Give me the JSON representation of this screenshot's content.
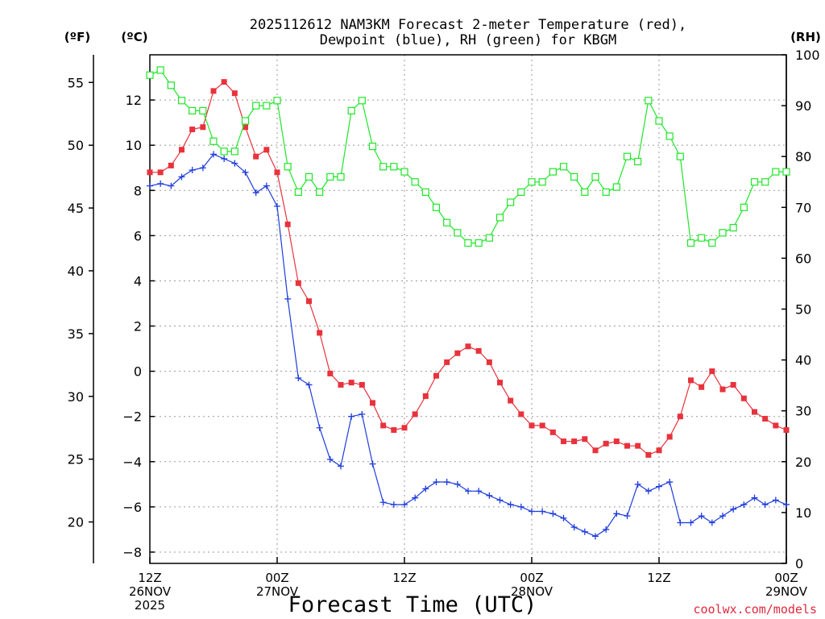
{
  "chart_data": {
    "type": "line",
    "title": "2025112612 NAM3KM Forecast 2-meter Temperature (red),",
    "subtitle": "Dewpoint (blue), RH (green) for KBGM",
    "xlabel": "Forecast Time (UTC)",
    "units": {
      "fahrenheit": "(ºF)",
      "celsius": "(ºC)",
      "rh": "(RH)"
    },
    "credit": "coolwx.com/models",
    "x_unit": "forecast hour",
    "xlim": [
      0,
      60
    ],
    "ylim_c": [
      -8.5,
      14
    ],
    "ylim_rh": [
      0,
      100
    ],
    "c_ticks": [
      -8,
      -6,
      -4,
      -2,
      0,
      2,
      4,
      6,
      8,
      10,
      12
    ],
    "c_tick_labels": [
      "−8",
      "−6",
      "−4",
      "−2",
      "0",
      "2",
      "4",
      "6",
      "8",
      "10",
      "12"
    ],
    "f_ticks": [
      20,
      25,
      30,
      35,
      40,
      45,
      50,
      55
    ],
    "f_tick_labels": [
      "20",
      "25",
      "30",
      "35",
      "40",
      "45",
      "50",
      "55"
    ],
    "rh_ticks": [
      0,
      10,
      20,
      30,
      40,
      50,
      60,
      70,
      80,
      90,
      100
    ],
    "rh_tick_labels": [
      "0",
      "10",
      "20",
      "30",
      "40",
      "50",
      "60",
      "70",
      "80",
      "90",
      "100"
    ],
    "x_ticks": [
      {
        "hour": 0,
        "lines": [
          "12Z",
          "26NOV",
          "2025"
        ]
      },
      {
        "hour": 12,
        "lines": [
          "00Z",
          "27NOV"
        ]
      },
      {
        "hour": 24,
        "lines": [
          "12Z"
        ]
      },
      {
        "hour": 36,
        "lines": [
          "00Z",
          "28NOV"
        ]
      },
      {
        "hour": 48,
        "lines": [
          "12Z"
        ]
      },
      {
        "hour": 60,
        "lines": [
          "00Z",
          "29NOV"
        ]
      }
    ],
    "grid": true,
    "series": [
      {
        "name": "2-meter Temperature",
        "color": "#e8323c",
        "marker": "filled-square",
        "axis": "celsius",
        "x": [
          0,
          1,
          2,
          3,
          4,
          5,
          6,
          7,
          8,
          9,
          10,
          11,
          12,
          13,
          14,
          15,
          16,
          17,
          18,
          19,
          20,
          21,
          22,
          23,
          24,
          25,
          26,
          27,
          28,
          29,
          30,
          31,
          32,
          33,
          34,
          35,
          36,
          37,
          38,
          39,
          40,
          41,
          42,
          43,
          44,
          45,
          46,
          47,
          48,
          49,
          50,
          51,
          52,
          53,
          54,
          55,
          56,
          57,
          58,
          59,
          60
        ],
        "values": [
          8.8,
          8.8,
          9.1,
          9.8,
          10.7,
          10.8,
          12.4,
          12.8,
          12.3,
          10.8,
          9.5,
          9.8,
          8.8,
          6.5,
          3.9,
          3.1,
          1.7,
          -0.1,
          -0.6,
          -0.5,
          -0.6,
          -1.4,
          -2.4,
          -2.6,
          -2.5,
          -1.9,
          -1.1,
          -0.2,
          0.4,
          0.8,
          1.1,
          0.9,
          0.4,
          -0.5,
          -1.3,
          -1.9,
          -2.4,
          -2.4,
          -2.7,
          -3.1,
          -3.1,
          -3.0,
          -3.5,
          -3.2,
          -3.1,
          -3.3,
          -3.3,
          -3.7,
          -3.5,
          -2.9,
          -2.0,
          -0.4,
          -0.7,
          0.0,
          -0.8,
          -0.6,
          -1.2,
          -1.8,
          -2.1,
          -2.4,
          -2.6
        ]
      },
      {
        "name": "Dewpoint",
        "color": "#1e3cdc",
        "marker": "plus",
        "axis": "celsius",
        "x": [
          0,
          1,
          2,
          3,
          4,
          5,
          6,
          7,
          8,
          9,
          10,
          11,
          12,
          13,
          14,
          15,
          16,
          17,
          18,
          19,
          20,
          21,
          22,
          23,
          24,
          25,
          26,
          27,
          28,
          29,
          30,
          31,
          32,
          33,
          34,
          35,
          36,
          37,
          38,
          39,
          40,
          41,
          42,
          43,
          44,
          45,
          46,
          47,
          48,
          49,
          50,
          51,
          52,
          53,
          54,
          55,
          56,
          57,
          58,
          59,
          60
        ],
        "values": [
          8.2,
          8.3,
          8.2,
          8.6,
          8.9,
          9.0,
          9.6,
          9.4,
          9.2,
          8.8,
          7.9,
          8.2,
          7.3,
          3.2,
          -0.3,
          -0.6,
          -2.5,
          -3.9,
          -4.2,
          -2.0,
          -1.9,
          -4.1,
          -5.8,
          -5.9,
          -5.9,
          -5.6,
          -5.2,
          -4.9,
          -4.9,
          -5.0,
          -5.3,
          -5.3,
          -5.5,
          -5.7,
          -5.9,
          -6.0,
          -6.2,
          -6.2,
          -6.3,
          -6.5,
          -6.9,
          -7.1,
          -7.3,
          -7.0,
          -6.3,
          -6.4,
          -5.0,
          -5.3,
          -5.1,
          -4.9,
          -6.7,
          -6.7,
          -6.4,
          -6.7,
          -6.4,
          -6.1,
          -5.9,
          -5.6,
          -5.9,
          -5.7,
          -5.9
        ]
      },
      {
        "name": "RH",
        "color": "#1ee628",
        "marker": "open-square",
        "axis": "rh",
        "x": [
          0,
          1,
          2,
          3,
          4,
          5,
          6,
          7,
          8,
          9,
          10,
          11,
          12,
          13,
          14,
          15,
          16,
          17,
          18,
          19,
          20,
          21,
          22,
          23,
          24,
          25,
          26,
          27,
          28,
          29,
          30,
          31,
          32,
          33,
          34,
          35,
          36,
          37,
          38,
          39,
          40,
          41,
          42,
          43,
          44,
          45,
          46,
          47,
          48,
          49,
          50,
          51,
          52,
          53,
          54,
          55,
          56,
          57,
          58,
          59,
          60
        ],
        "values": [
          96,
          97,
          94,
          91,
          89,
          89,
          83,
          81,
          81,
          87,
          90,
          90,
          91,
          78,
          73,
          76,
          73,
          76,
          76,
          89,
          91,
          82,
          78,
          78,
          77,
          75,
          73,
          70,
          67,
          65,
          63,
          63,
          64,
          68,
          71,
          73,
          75,
          75,
          77,
          78,
          76,
          73,
          76,
          73,
          74,
          80,
          79,
          91,
          87,
          84,
          80,
          63,
          64,
          63,
          65,
          66,
          70,
          75,
          75,
          77,
          77
        ]
      }
    ]
  }
}
